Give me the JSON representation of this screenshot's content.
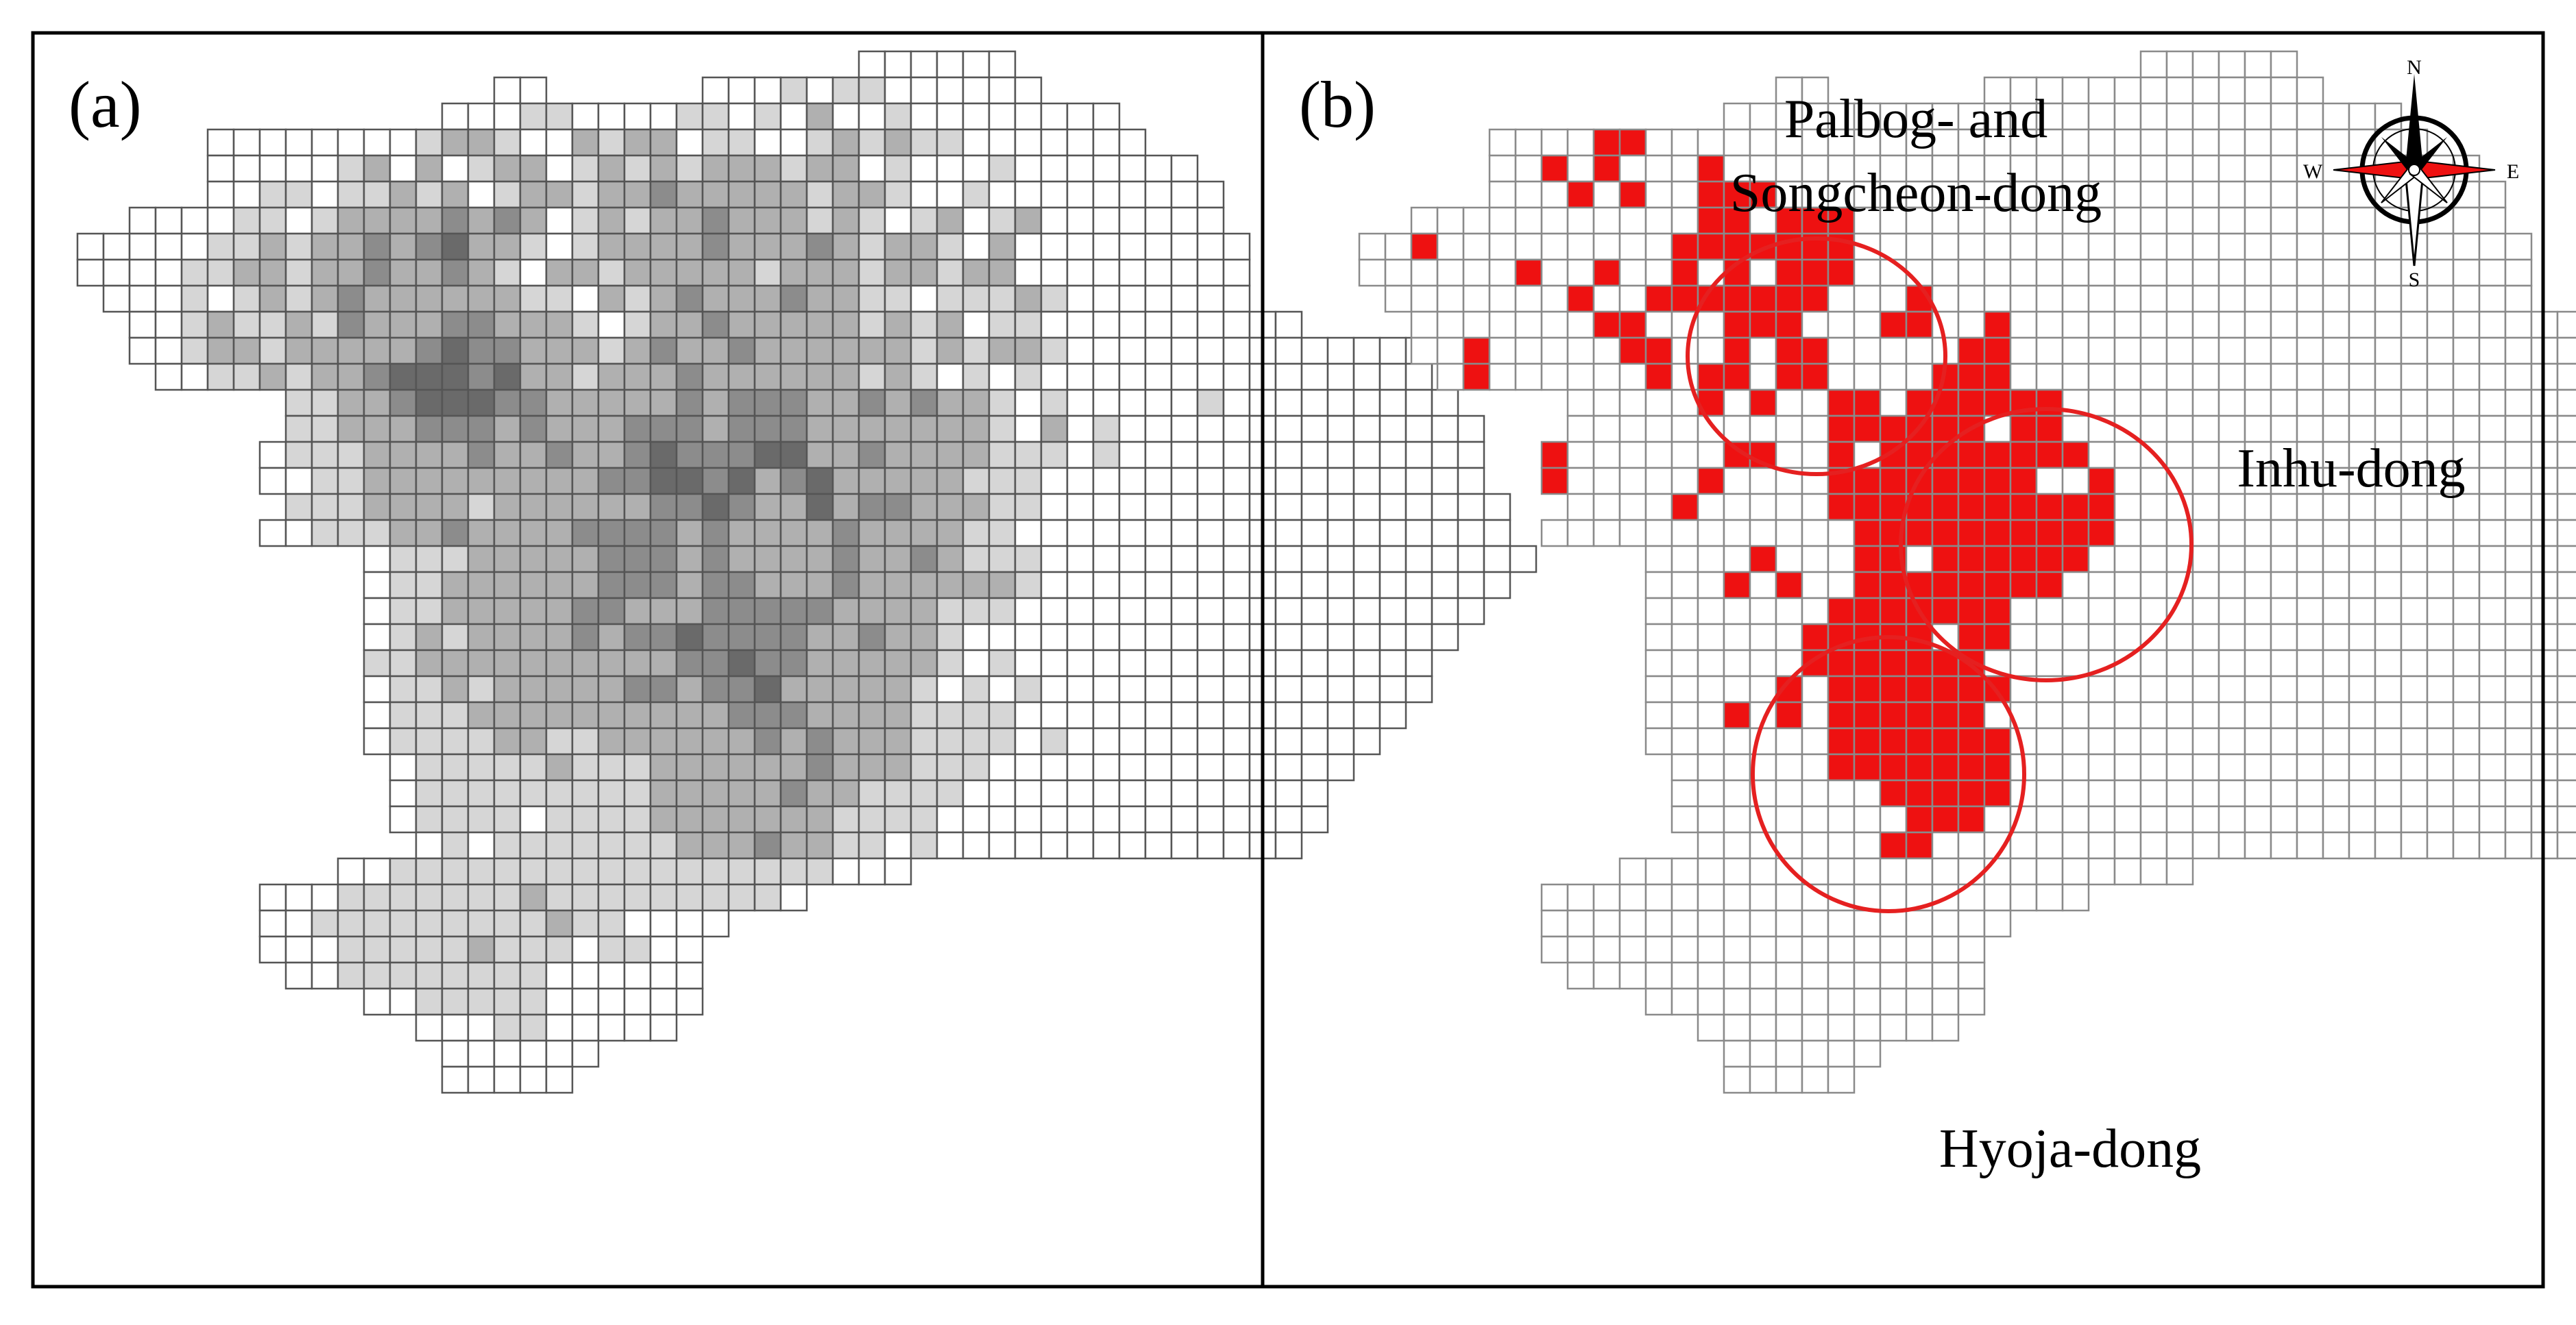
{
  "panels": [
    {
      "label": "(a)",
      "style": "grayscale density grid"
    },
    {
      "label": "(b)",
      "style": "hotspot grid"
    }
  ],
  "place_labels": {
    "palbog_line1": "Palbog- and",
    "palbog_line2": "Songcheon-dong",
    "inhu": "Inhu-dong",
    "hyoja": "Hyoja-dong"
  },
  "compass": {
    "north": "N",
    "south": "S",
    "east": "E",
    "west": "W"
  },
  "colors": {
    "grid_line": "#555555",
    "grid_line_b": "#8a8a8a",
    "gray_levels": [
      "#ffffff",
      "#d6d6d6",
      "#b0b0b0",
      "#8c8c8c",
      "#6a6a6a",
      "#4d4d4d"
    ],
    "hotspot": "#ee1111",
    "hotspot_circle": "#e52020"
  },
  "grid": {
    "rows": [
      "...............................cccccc...................",
      ".................cc......ccccccccccccc..................",
      "...............cccccccccccccccccccccccccc...............",
      "......cccccccccccccccccccccccccccccccccccc..............",
      "......cccccccccccccccccccccccccccccccccccccc............",
      "......ccccccccccccccccccccccccccccccccccccccc...........",
      "...cccccccccccccccccccccccccccccccccccccccccc...........",
      ".ccccccccccccccccccccccccccccccccccccccccccccc..........",
      ".ccccccccccccccccccccccccccccccccccccccccccccc..........",
      "..cccccccccccccccccccccccccccccccccccccccccccc..........",
      "...ccccccccccccccccccccccccccccccccccccccccccccc........",
      "...cccccccccccccccccccccccccccccccccccccccccccccccccc....",
      "....ccccccccccccccccccccccccccccccccccccccccccccccccc....",
      ".........ccccccccccccccccccccccccccccccccccccccccccccc...",
      ".........cccccccccccccccccccccccccccccccccccccccccccccc..",
      "........ccccccccccccccccccccccccccccccccccccccccccccccc..",
      "........ccccccccccccccccccccccccccccccccccccccccccccccc..",
      ".........ccccccccccccccccccccccccccccccccccccccccccccccc.",
      "........cccccccccccccccccccccccccccccccccccccccccccccccc.",
      "............ccccccccccccccccccccccccccccccccccccccccccccc",
      "............cccccccccccccccccccccccccccccccccccccccccccc.",
      "............ccccccccccccccccccccccccccccccccccccccccccc..",
      "............cccccccccccccccccccccccccccccccccccccccccc...",
      "............ccccccccccccccccccccccccccccccccccccccccc....",
      "............ccccccccccccccccccccccccccccccccccccccccc....",
      "............cccccccccccccccccccccccccccccccccccccccc.....",
      "............ccccccccccccccccccccccccccccccccccccccc......",
      ".............ccccccccccccccccccccccccccccccccccccc.......",
      ".............cccccccccccccccccccccccccccccccccccc........",
      ".............cccccccccccccccccccccccccccccccccccc........",
      "..............cccccccccccccccccccccccccccccccccc.........",
      "...........cccccccccccccccccccccc....................... ",
      "........ccccccccccccccccccccc...........................",
      "........cccccccccccccccccc..............................",
      "........ccccccccccccccccc...............................",
      ".........cccccccccccccccc...............................",
      "............ccccccccccccc...............................",
      "..............cccccccccc................................",
      "...............cccccc...................................",
      "...............ccccc...................................."
    ],
    "shade_a": [
      "...............................000000...................",
      ".................00......0001011000000..................",
      "...............00011000011010200100000000...............",
      "......00000000122100212201100121211000000000............",
      "......00000120201220121212221220100010000000............",
      "......001101121201221223222221221001000000000...........",
      "...00001101222232320121223222121012012000000...........",
      ".00000112122323422101222232223212210200000000..........",
      ".00001122122322321022122222122212212200000000..........",
      "..00010121232222221102123222322110111210000000..........",
      "...001211213222332221012232222212120110000000000........",
      "...0012212222234332221232232222221212210000000000000....",
      "....0011212234443422122232222221210101000000000000000...",
      ".........11223444332222232333223232210100000100000000...",
      ".........11222333232223332333222222210201000000000000..",
      "........0111222232232234333442232222111010000000000000..",
      "........00112222222223344342342222211100000000000000000.",
      ".........11122221222222334322423322211000000000000000000.",
      "........0011122322223333232222322221100000000000000000000",
      "............0111222223332322223223211100000000000000000000",
      "............01122222233323322232222221000000000000000000.",
      "............0112222233222333332222111000000000000000000..",
      "............0121222232334333322322100000000000000000000...",
      "............112222222222334332222210100000000000000000....",
      "............01121222223323342222210101000000000000000....",
      "............0111222222222233322221111000000000000000.....",
      "............011112211222222323222111101000000000000......",
      ".............0111112111222222322211100000000000000.......",
      ".............011111111122222322111100000000000000........",
      ".............01111011112222222111100000000000000........",
      "..............01011111112223221101000000000000..........",
      "...........0011111111111111111.......................",
      "........00011111112111111111...........................",
      "........001111111112110000..............................",
      "........000111112111011000..............................",
      ".........0011111111000000...............................",
      "............0011111000000...............................",
      "..............0001100000................................",
      "...............000000...................................",
      "...............00000...................................."
    ],
    "hotspot_cells": [
      [
        3,
        10
      ],
      [
        3,
        11
      ],
      [
        4,
        10
      ],
      [
        4,
        8
      ],
      [
        4,
        14
      ],
      [
        5,
        11
      ],
      [
        5,
        9
      ],
      [
        5,
        14
      ],
      [
        5,
        15
      ],
      [
        5,
        16
      ],
      [
        6,
        14
      ],
      [
        6,
        15
      ],
      [
        6,
        17
      ],
      [
        6,
        18
      ],
      [
        6,
        19
      ],
      [
        7,
        3
      ],
      [
        7,
        13
      ],
      [
        7,
        14
      ],
      [
        7,
        15
      ],
      [
        7,
        16
      ],
      [
        7,
        17
      ],
      [
        7,
        18
      ],
      [
        7,
        19
      ],
      [
        8,
        7
      ],
      [
        8,
        10
      ],
      [
        8,
        13
      ],
      [
        8,
        15
      ],
      [
        8,
        17
      ],
      [
        8,
        18
      ],
      [
        8,
        19
      ],
      [
        9,
        9
      ],
      [
        9,
        12
      ],
      [
        9,
        13
      ],
      [
        9,
        14
      ],
      [
        9,
        15
      ],
      [
        9,
        16
      ],
      [
        9,
        17
      ],
      [
        9,
        18
      ],
      [
        9,
        22
      ],
      [
        10,
        10
      ],
      [
        10,
        11
      ],
      [
        10,
        15
      ],
      [
        10,
        16
      ],
      [
        10,
        17
      ],
      [
        10,
        21
      ],
      [
        10,
        22
      ],
      [
        10,
        25
      ],
      [
        11,
        5
      ],
      [
        11,
        11
      ],
      [
        11,
        12
      ],
      [
        11,
        15
      ],
      [
        11,
        17
      ],
      [
        11,
        18
      ],
      [
        11,
        24
      ],
      [
        11,
        25
      ],
      [
        12,
        5
      ],
      [
        12,
        12
      ],
      [
        12,
        14
      ],
      [
        12,
        15
      ],
      [
        12,
        17
      ],
      [
        12,
        18
      ],
      [
        12,
        23
      ],
      [
        12,
        24
      ],
      [
        12,
        25
      ],
      [
        13,
        14
      ],
      [
        13,
        16
      ],
      [
        13,
        19
      ],
      [
        13,
        20
      ],
      [
        13,
        22
      ],
      [
        13,
        23
      ],
      [
        13,
        24
      ],
      [
        13,
        25
      ],
      [
        13,
        26
      ],
      [
        13,
        27
      ],
      [
        14,
        19
      ],
      [
        14,
        20
      ],
      [
        14,
        21
      ],
      [
        14,
        22
      ],
      [
        14,
        23
      ],
      [
        14,
        24
      ],
      [
        14,
        26
      ],
      [
        14,
        27
      ],
      [
        15,
        8
      ],
      [
        15,
        15
      ],
      [
        15,
        16
      ],
      [
        15,
        19
      ],
      [
        15,
        21
      ],
      [
        15,
        22
      ],
      [
        15,
        23
      ],
      [
        15,
        24
      ],
      [
        15,
        25
      ],
      [
        15,
        26
      ],
      [
        15,
        27
      ],
      [
        15,
        28
      ],
      [
        16,
        8
      ],
      [
        16,
        14
      ],
      [
        16,
        19
      ],
      [
        16,
        20
      ],
      [
        16,
        21
      ],
      [
        16,
        22
      ],
      [
        16,
        23
      ],
      [
        16,
        24
      ],
      [
        16,
        25
      ],
      [
        16,
        26
      ],
      [
        16,
        29
      ],
      [
        17,
        13
      ],
      [
        17,
        19
      ],
      [
        17,
        20
      ],
      [
        17,
        21
      ],
      [
        17,
        22
      ],
      [
        17,
        23
      ],
      [
        17,
        24
      ],
      [
        17,
        25
      ],
      [
        17,
        26
      ],
      [
        17,
        27
      ],
      [
        17,
        28
      ],
      [
        17,
        29
      ],
      [
        18,
        20
      ],
      [
        18,
        21
      ],
      [
        18,
        22
      ],
      [
        18,
        23
      ],
      [
        18,
        24
      ],
      [
        18,
        25
      ],
      [
        18,
        26
      ],
      [
        18,
        27
      ],
      [
        18,
        28
      ],
      [
        18,
        29
      ],
      [
        19,
        16
      ],
      [
        19,
        20
      ],
      [
        19,
        21
      ],
      [
        19,
        23
      ],
      [
        19,
        24
      ],
      [
        19,
        25
      ],
      [
        19,
        26
      ],
      [
        19,
        27
      ],
      [
        19,
        28
      ],
      [
        20,
        15
      ],
      [
        20,
        17
      ],
      [
        20,
        20
      ],
      [
        20,
        21
      ],
      [
        20,
        22
      ],
      [
        20,
        23
      ],
      [
        20,
        24
      ],
      [
        20,
        25
      ],
      [
        20,
        26
      ],
      [
        20,
        27
      ],
      [
        21,
        19
      ],
      [
        21,
        20
      ],
      [
        21,
        21
      ],
      [
        21,
        22
      ],
      [
        21,
        23
      ],
      [
        21,
        24
      ],
      [
        21,
        25
      ],
      [
        22,
        18
      ],
      [
        22,
        19
      ],
      [
        22,
        20
      ],
      [
        22,
        21
      ],
      [
        22,
        22
      ],
      [
        22,
        24
      ],
      [
        22,
        25
      ],
      [
        23,
        18
      ],
      [
        23,
        19
      ],
      [
        23,
        20
      ],
      [
        23,
        21
      ],
      [
        23,
        22
      ],
      [
        23,
        23
      ],
      [
        23,
        24
      ],
      [
        24,
        17
      ],
      [
        24,
        19
      ],
      [
        24,
        20
      ],
      [
        24,
        21
      ],
      [
        24,
        22
      ],
      [
        24,
        23
      ],
      [
        24,
        24
      ],
      [
        24,
        25
      ],
      [
        25,
        15
      ],
      [
        25,
        17
      ],
      [
        25,
        19
      ],
      [
        25,
        20
      ],
      [
        25,
        21
      ],
      [
        25,
        22
      ],
      [
        25,
        23
      ],
      [
        25,
        24
      ],
      [
        26,
        19
      ],
      [
        26,
        20
      ],
      [
        26,
        21
      ],
      [
        26,
        22
      ],
      [
        26,
        23
      ],
      [
        26,
        24
      ],
      [
        26,
        25
      ],
      [
        27,
        19
      ],
      [
        27,
        20
      ],
      [
        27,
        21
      ],
      [
        27,
        22
      ],
      [
        27,
        23
      ],
      [
        27,
        24
      ],
      [
        27,
        25
      ],
      [
        28,
        21
      ],
      [
        28,
        22
      ],
      [
        28,
        23
      ],
      [
        28,
        24
      ],
      [
        28,
        25
      ],
      [
        29,
        22
      ],
      [
        29,
        23
      ],
      [
        29,
        24
      ],
      [
        30,
        21
      ],
      [
        30,
        22
      ]
    ]
  }
}
